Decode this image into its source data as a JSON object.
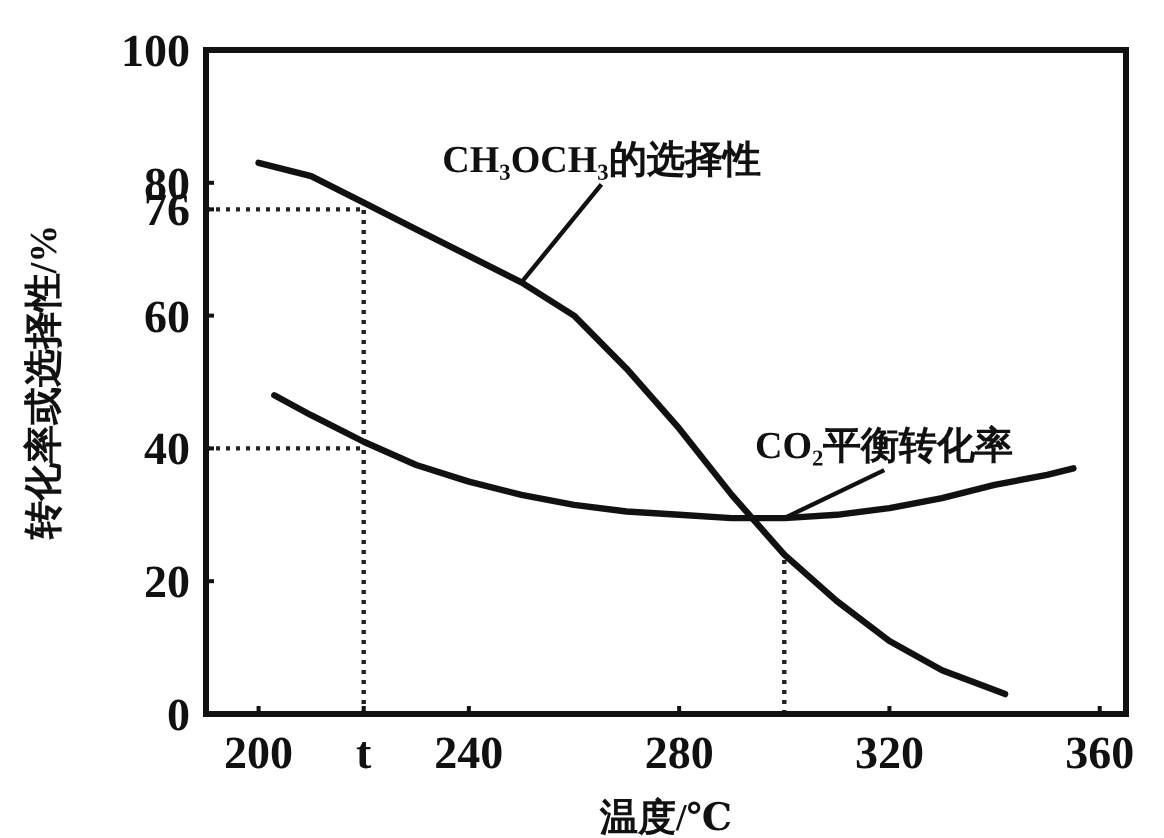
{
  "chart_data": {
    "type": "line",
    "xlabel": "温度/℃",
    "ylabel": "转化率或选择性/%",
    "xlim": [
      190,
      365
    ],
    "ylim": [
      0,
      100
    ],
    "xticks": [
      200,
      {
        "value": 220,
        "label": "t"
      },
      240,
      280,
      320,
      360
    ],
    "yticks": [
      0,
      20,
      40,
      60,
      76,
      80,
      100
    ],
    "grid": false,
    "legend": false,
    "marker": "none",
    "line_style": "solid",
    "series": [
      {
        "name": "CH₃OCH₃的选择性",
        "color": "#111111",
        "x": [
          200,
          210,
          220,
          230,
          240,
          250,
          260,
          270,
          280,
          290,
          300,
          310,
          320,
          330,
          340,
          342
        ],
        "values": [
          83,
          81,
          77,
          73,
          69,
          65,
          60,
          52,
          43,
          33,
          24,
          17,
          11,
          6.6,
          3.6,
          3
        ]
      },
      {
        "name": "CO₂平衡转化率",
        "color": "#111111",
        "x": [
          203,
          210,
          220,
          230,
          240,
          250,
          260,
          270,
          280,
          290,
          300,
          310,
          320,
          330,
          340,
          350,
          355
        ],
        "values": [
          48,
          45,
          41,
          37.5,
          35,
          33,
          31.5,
          30.5,
          30,
          29.5,
          29.5,
          30,
          31,
          32.5,
          34.5,
          36,
          37
        ]
      }
    ],
    "ref_lines": [
      {
        "axis": "y",
        "value": 76,
        "line_style": "dotted",
        "color": "#222222"
      },
      {
        "axis": "y",
        "value": 40,
        "line_style": "dotted",
        "color": "#222222"
      },
      {
        "axis": "x",
        "value": 220,
        "line_style": "dotted",
        "color": "#222222"
      },
      {
        "axis": "x",
        "value": 300,
        "line_style": "dotted",
        "color": "#222222"
      }
    ]
  }
}
